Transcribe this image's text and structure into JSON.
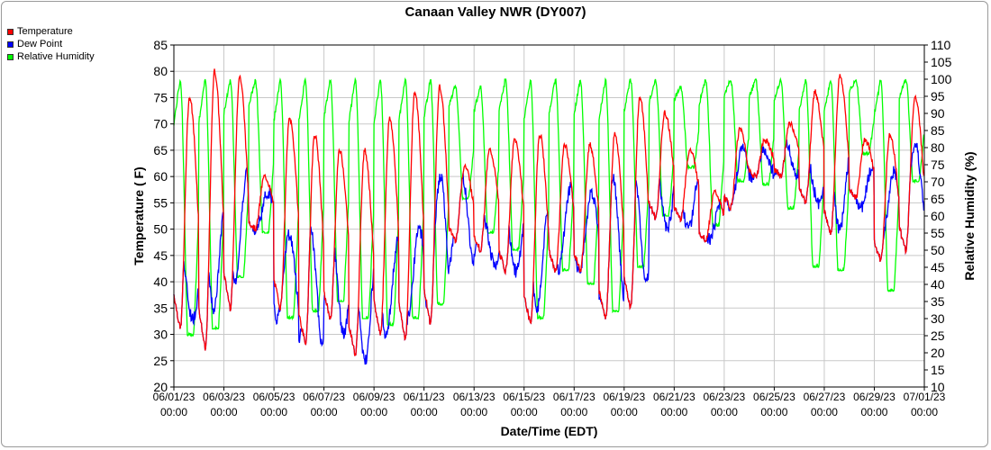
{
  "colors": {
    "temperature": "#ff0000",
    "dew_point": "#0000ff",
    "relative_humidity": "#00ff00",
    "grid": "#c8c8c8",
    "background": "#ffffff"
  },
  "chart_data": {
    "type": "line",
    "title": "Canaan Valley NWR (DY007)",
    "xlabel": "Date/Time (EDT)",
    "ylabel": "Temperature ( F)",
    "y2label": "Relative Humidity (%)",
    "xlim": [
      0,
      30
    ],
    "ylim": [
      20,
      85
    ],
    "y2lim": [
      10,
      110
    ],
    "yticks": [
      20,
      25,
      30,
      35,
      40,
      45,
      50,
      55,
      60,
      65,
      70,
      75,
      80,
      85
    ],
    "y2ticks": [
      10,
      15,
      20,
      25,
      30,
      35,
      40,
      45,
      50,
      55,
      60,
      65,
      70,
      75,
      80,
      85,
      90,
      95,
      100,
      105,
      110
    ],
    "xticks": [
      {
        "x": 0,
        "date": "06/01/23",
        "time": "00:00"
      },
      {
        "x": 2,
        "date": "06/03/23",
        "time": "00:00"
      },
      {
        "x": 4,
        "date": "06/05/23",
        "time": "00:00"
      },
      {
        "x": 6,
        "date": "06/07/23",
        "time": "00:00"
      },
      {
        "x": 8,
        "date": "06/09/23",
        "time": "00:00"
      },
      {
        "x": 10,
        "date": "06/11/23",
        "time": "00:00"
      },
      {
        "x": 12,
        "date": "06/13/23",
        "time": "00:00"
      },
      {
        "x": 14,
        "date": "06/15/23",
        "time": "00:00"
      },
      {
        "x": 16,
        "date": "06/17/23",
        "time": "00:00"
      },
      {
        "x": 18,
        "date": "06/19/23",
        "time": "00:00"
      },
      {
        "x": 20,
        "date": "06/21/23",
        "time": "00:00"
      },
      {
        "x": 22,
        "date": "06/23/23",
        "time": "00:00"
      },
      {
        "x": 24,
        "date": "06/25/23",
        "time": "00:00"
      },
      {
        "x": 26,
        "date": "06/27/23",
        "time": "00:00"
      },
      {
        "x": 28,
        "date": "06/29/23",
        "time": "00:00"
      },
      {
        "x": 30,
        "date": "07/01/23",
        "time": "00:00"
      }
    ],
    "legend": [
      "Temperature",
      "Dew Point",
      "Relative Humidity"
    ],
    "legend_position": "top-left",
    "daily": {
      "days": [
        "06/01",
        "06/02",
        "06/03",
        "06/04",
        "06/05",
        "06/06",
        "06/07",
        "06/08",
        "06/09",
        "06/10",
        "06/11",
        "06/12",
        "06/13",
        "06/14",
        "06/15",
        "06/16",
        "06/17",
        "06/18",
        "06/19",
        "06/20",
        "06/21",
        "06/22",
        "06/23",
        "06/24",
        "06/25",
        "06/26",
        "06/27",
        "06/28",
        "06/29",
        "06/30"
      ],
      "temp_min": [
        31,
        27,
        35,
        50,
        35,
        28,
        33,
        26,
        30,
        29,
        32,
        48,
        46,
        42,
        32,
        42,
        42,
        33,
        35,
        52,
        52,
        48,
        54,
        60,
        60,
        55,
        49,
        56,
        44,
        46
      ],
      "temp_max": [
        75,
        80,
        79,
        60,
        71,
        68,
        65,
        65,
        71,
        76,
        77,
        62,
        65,
        67,
        68,
        66,
        66,
        68,
        75,
        72,
        65,
        57,
        69,
        67,
        70,
        76,
        79,
        67,
        68,
        75
      ],
      "dew_min": [
        33,
        35,
        40,
        50,
        33,
        28,
        30,
        25,
        30,
        33,
        35,
        44,
        43,
        42,
        35,
        42,
        42,
        36,
        40,
        50,
        50,
        48,
        54,
        60,
        60,
        55,
        50,
        54,
        48,
        50
      ],
      "dew_max": [
        46,
        57,
        61,
        57,
        49,
        50,
        49,
        47,
        48,
        50,
        60,
        61,
        53,
        55,
        56,
        58,
        57,
        60,
        62,
        64,
        62,
        56,
        66,
        65,
        67,
        64,
        66,
        62,
        61,
        66
      ],
      "rh_min": [
        25,
        27,
        42,
        55,
        30,
        32,
        35,
        30,
        28,
        30,
        34,
        65,
        55,
        50,
        30,
        44,
        40,
        32,
        45,
        60,
        74,
        57,
        70,
        69,
        62,
        45,
        44,
        78,
        38,
        70
      ],
      "rh_max": [
        100,
        100,
        100,
        100,
        100,
        100,
        100,
        100,
        100,
        100,
        100,
        98,
        98,
        100,
        100,
        100,
        100,
        100,
        100,
        100,
        98,
        100,
        100,
        100,
        100,
        100,
        100,
        100,
        100,
        100
      ]
    }
  }
}
